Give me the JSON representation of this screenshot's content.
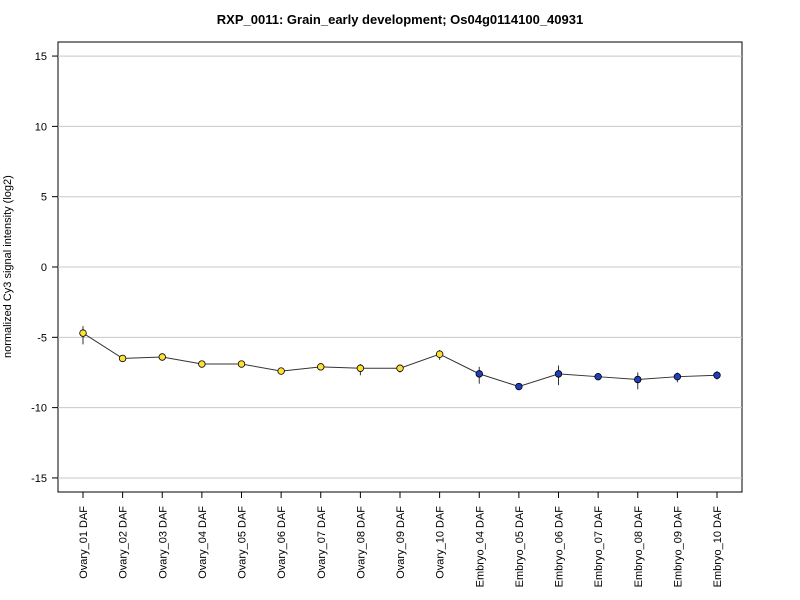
{
  "chart_data": {
    "type": "line",
    "title": "RXP_0011: Grain_early development; Os04g0114100_40931",
    "xlabel": "",
    "ylabel": "normalized Cy3 signal intensity (log2)",
    "ylim": [
      -16,
      16
    ],
    "yticks": [
      -15,
      -10,
      -5,
      0,
      5,
      10,
      15
    ],
    "grid": true,
    "categories": [
      "Ovary_01 DAF",
      "Ovary_02 DAF",
      "Ovary_03 DAF",
      "Ovary_04 DAF",
      "Ovary_05 DAF",
      "Ovary_06 DAF",
      "Ovary_07 DAF",
      "Ovary_08 DAF",
      "Ovary_09 DAF",
      "Ovary_10 DAF",
      "Embryo_04 DAF",
      "Embryo_05 DAF",
      "Embryo_06 DAF",
      "Embryo_07 DAF",
      "Embryo_08 DAF",
      "Embryo_09 DAF",
      "Embryo_10 DAF"
    ],
    "values": [
      -4.7,
      -6.5,
      -6.4,
      -6.9,
      -6.9,
      -7.4,
      -7.1,
      -7.2,
      -7.2,
      -6.2,
      -7.6,
      -8.5,
      -7.6,
      -7.8,
      -8.0,
      -7.8,
      -7.7
    ],
    "error_low": [
      -5.5,
      -6.5,
      -6.4,
      -6.9,
      -7.0,
      -7.6,
      -7.1,
      -7.7,
      -7.5,
      -6.6,
      -8.3,
      -8.5,
      -8.4,
      -7.8,
      -8.7,
      -8.2,
      -8.0
    ],
    "error_high": [
      -4.2,
      -6.5,
      -6.4,
      -6.9,
      -6.8,
      -7.2,
      -7.1,
      -6.9,
      -7.0,
      -5.9,
      -7.1,
      -8.5,
      -7.0,
      -7.8,
      -7.5,
      -7.5,
      -7.4
    ],
    "point_colors": [
      "#ffe135",
      "#ffe135",
      "#ffe135",
      "#ffe135",
      "#ffe135",
      "#ffe135",
      "#ffe135",
      "#ffe135",
      "#ffe135",
      "#ffe135",
      "#1f3fbf",
      "#1f3fbf",
      "#1f3fbf",
      "#1f3fbf",
      "#1f3fbf",
      "#1f3fbf",
      "#1f3fbf"
    ],
    "line_color": "#333333",
    "grid_color": "#c8c8c8"
  }
}
